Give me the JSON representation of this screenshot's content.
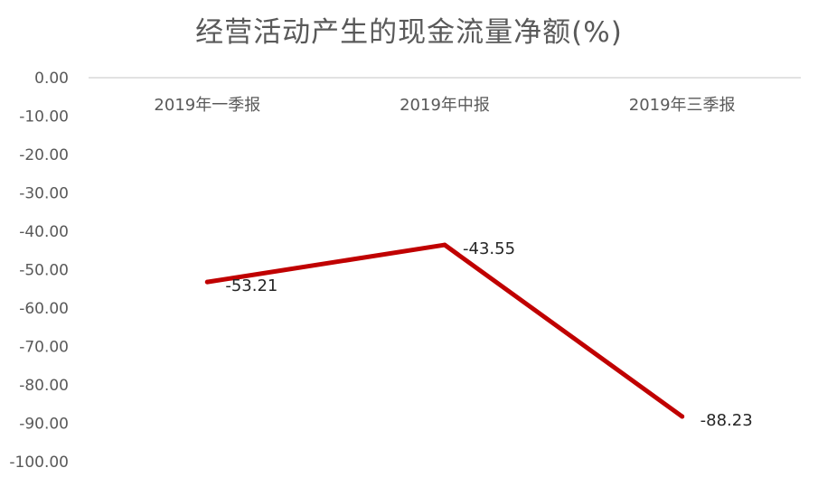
{
  "chart_data": {
    "type": "line",
    "title": "经营活动产生的现金流量净额(%)",
    "categories": [
      "2019年一季报",
      "2019年中报",
      "2019年三季报"
    ],
    "series": [
      {
        "values": [
          -53.21,
          -43.55,
          -88.23
        ],
        "color": "#C00000"
      }
    ],
    "data_labels": [
      "-53.21",
      "-43.55",
      "-88.23"
    ],
    "yticks": [
      "0.00",
      "-10.00",
      "-20.00",
      "-30.00",
      "-40.00",
      "-50.00",
      "-60.00",
      "-70.00",
      "-80.00",
      "-90.00",
      "-100.00"
    ],
    "ylim": [
      -100,
      0
    ],
    "xlabel": "",
    "ylabel": "",
    "grid": false,
    "legend": "none",
    "axis_color": "#D9D9D9"
  }
}
